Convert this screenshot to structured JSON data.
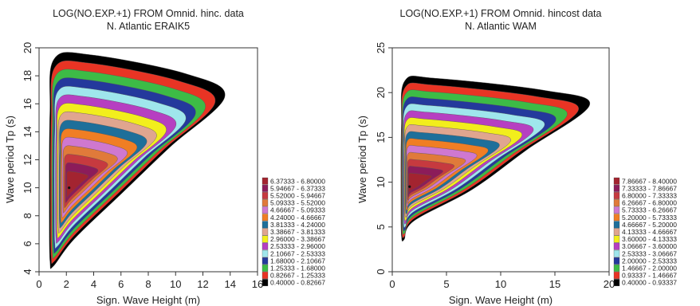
{
  "chart_data": [
    {
      "type": "contour",
      "title": "LOG(NO.EXP.+1) FROM Omnid. hinc. data",
      "subtitle": "N. Atlantic ERAIK5",
      "xlabel": "Sign. Wave Height (m)",
      "ylabel": "Wave period Tp (s)",
      "xlim": [
        0,
        16
      ],
      "ylim": [
        4,
        20
      ],
      "xticks": [
        "0",
        "2",
        "4",
        "6",
        "8",
        "10",
        "12",
        "14",
        "16"
      ],
      "yticks": [
        "4",
        "6",
        "8",
        "10",
        "12",
        "14",
        "16",
        "18",
        "20"
      ],
      "peak": {
        "hs": 2.2,
        "tp": 10.0
      },
      "envelope": {
        "hs_range": [
          0.75,
          13.6
        ],
        "tp_range": [
          4.4,
          19.5
        ]
      },
      "legend": [
        {
          "range": "6.37333 - 6.80000",
          "color": "#a32430"
        },
        {
          "range": "5.94667 - 6.37333",
          "color": "#8c1c5a"
        },
        {
          "range": "5.52000 - 5.94667",
          "color": "#c63a3f"
        },
        {
          "range": "5.09333 - 5.52000",
          "color": "#e07a3a"
        },
        {
          "range": "4.66667 - 5.09333",
          "color": "#cf78cf"
        },
        {
          "range": "4.24000 - 4.66667",
          "color": "#f07e24"
        },
        {
          "range": "3.81333 - 4.24000",
          "color": "#1e6f9a"
        },
        {
          "range": "3.38667 - 3.81333",
          "color": "#e0a58f"
        },
        {
          "range": "2.96000 - 3.38667",
          "color": "#f2ee1c"
        },
        {
          "range": "2.53333 - 2.96000",
          "color": "#b63fc1"
        },
        {
          "range": "2.10667 - 2.53333",
          "color": "#9fe6ec"
        },
        {
          "range": "1.68000 - 2.10667",
          "color": "#24399c"
        },
        {
          "range": "1.25333 - 1.68000",
          "color": "#3dbb46"
        },
        {
          "range": "0.82667 - 1.25333",
          "color": "#e83424"
        },
        {
          "range": "0.40000 - 0.82667",
          "color": "#000000"
        }
      ]
    },
    {
      "type": "contour",
      "title": "LOG(NO.EXP.+1) FROM Omnid. hincost data",
      "subtitle": "N. Atlantic WAM",
      "xlabel": "Sign. Wave Height (m)",
      "ylabel": "Wave period Tp (s)",
      "xlim": [
        0,
        20
      ],
      "ylim": [
        0,
        25
      ],
      "xticks": [
        "0",
        "5",
        "10",
        "15",
        "20"
      ],
      "yticks": [
        "0",
        "5",
        "10",
        "15",
        "20",
        "25"
      ],
      "peak": {
        "hs": 1.6,
        "tp": 9.5
      },
      "envelope": {
        "hs_range": [
          0.8,
          18.2
        ],
        "tp_range": [
          3.6,
          21.6
        ]
      },
      "legend": [
        {
          "range": "7.86667 - 8.40000",
          "color": "#a32430"
        },
        {
          "range": "7.33333 - 7.86667",
          "color": "#8c1c5a"
        },
        {
          "range": "6.80000 - 7.33333",
          "color": "#c63a3f"
        },
        {
          "range": "6.26667 - 6.80000",
          "color": "#e07a3a"
        },
        {
          "range": "5.73333 - 6.26667",
          "color": "#cf78cf"
        },
        {
          "range": "5.20000 - 5.73333",
          "color": "#f07e24"
        },
        {
          "range": "4.66667 - 5.20000",
          "color": "#1e6f9a"
        },
        {
          "range": "4.13333 - 4.66667",
          "color": "#e0a58f"
        },
        {
          "range": "3.60000 - 4.13333",
          "color": "#f2ee1c"
        },
        {
          "range": "3.06667 - 3.60000",
          "color": "#b63fc1"
        },
        {
          "range": "2.53333 - 3.06667",
          "color": "#9fe6ec"
        },
        {
          "range": "2.00000 - 2.53333",
          "color": "#24399c"
        },
        {
          "range": "1.46667 - 2.00000",
          "color": "#3dbb46"
        },
        {
          "range": "0.93337 - 1.46667",
          "color": "#e83424"
        },
        {
          "range": "0.40000 - 0.93337",
          "color": "#000000"
        }
      ]
    }
  ]
}
